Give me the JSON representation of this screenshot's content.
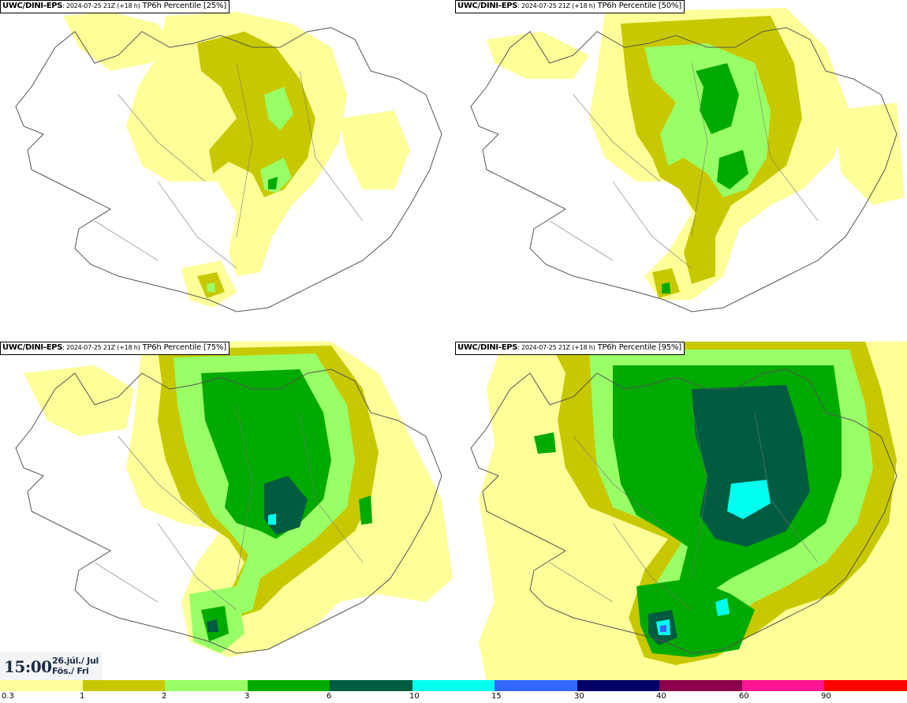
{
  "panels": [
    {
      "id": "p25",
      "model": "UWC/DINI-EPS",
      "run": ": 2024-07-25 21Z (+18 h)",
      "field": " TP6h Percentile [25%]"
    },
    {
      "id": "p50",
      "model": "UWC/DINI-EPS",
      "run": ": 2024-07-25 21Z (+18 h)",
      "field": " TP6h Percentile [50%]"
    },
    {
      "id": "p75",
      "model": "UWC/DINI-EPS",
      "run": ": 2024-07-25 21Z (+18 h)",
      "field": " TP6h Percentile [75%]"
    },
    {
      "id": "p95",
      "model": "UWC/DINI-EPS",
      "run": ": 2024-07-25 21Z (+18 h)",
      "field": " TP6h Percentile [95%]"
    }
  ],
  "valid_time": {
    "time": "15:00",
    "date_line1": "26.júl./ Jul",
    "date_line2": "Fös./ Fri"
  },
  "colorbar": {
    "colors": [
      "#ffff99",
      "#c8c800",
      "#99ff66",
      "#00aa00",
      "#005c40",
      "#00ffee",
      "#3366ff",
      "#000066",
      "#8b004b",
      "#ff1493",
      "#ff0000"
    ],
    "labels": [
      "0.3",
      "1",
      "2",
      "3",
      "6",
      "10",
      "15",
      "30",
      "40",
      "60",
      "90"
    ]
  }
}
